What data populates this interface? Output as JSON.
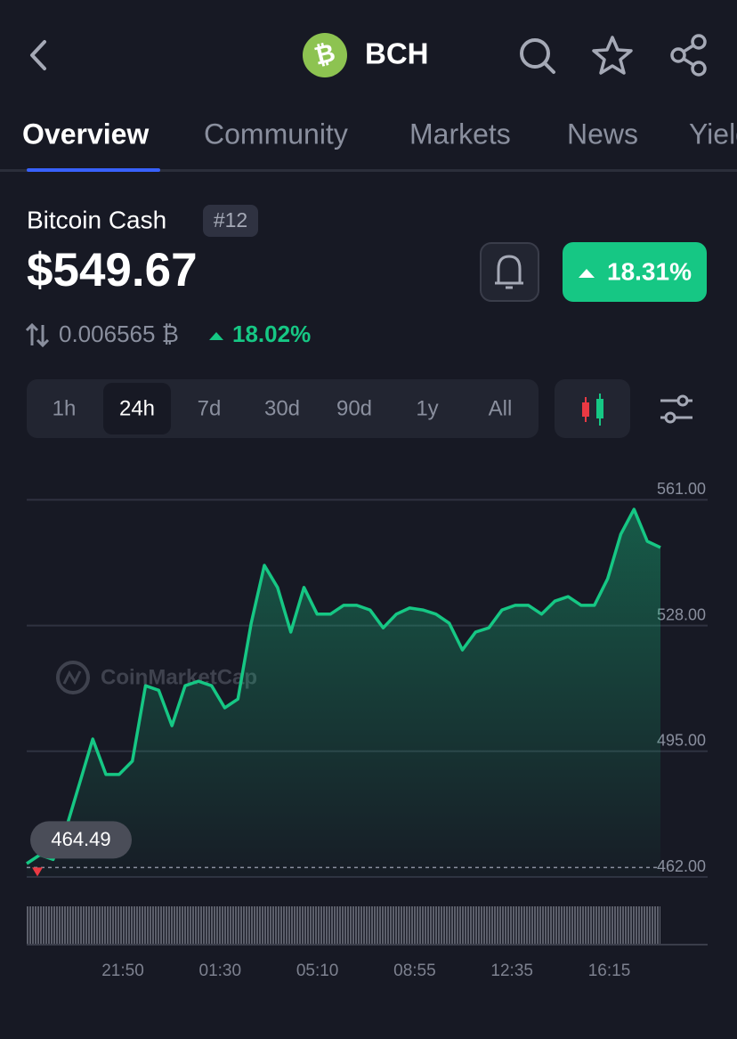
{
  "header": {
    "symbol": "BCH"
  },
  "tabs": [
    "Overview",
    "Community",
    "Markets",
    "News",
    "Yield"
  ],
  "active_tab": 0,
  "coin": {
    "name": "Bitcoin Cash",
    "rank": "#12",
    "price": "$549.67",
    "change": "18.31%",
    "btc_price": "0.006565 ₿",
    "btc_change": "18.02%"
  },
  "timeframes": [
    "1h",
    "24h",
    "7d",
    "30d",
    "90d",
    "1y",
    "All"
  ],
  "selected_timeframe": 1,
  "chart_data": {
    "type": "line",
    "watermark": "CoinMarketCap",
    "color": "#16c784",
    "series": [
      {
        "values": [
          465.5,
          467.8,
          466.6,
          474.9,
          486.5,
          498.2,
          488.9,
          488.9,
          492.4,
          512.2,
          511.0,
          501.7,
          512.2,
          513.4,
          512.2,
          506.4,
          508.7,
          528.6,
          543.8,
          538.0,
          526.3,
          538.0,
          531.0,
          531.0,
          533.3,
          533.3,
          532.1,
          527.4,
          531.0,
          532.6,
          532.1,
          531.0,
          528.6,
          521.6,
          526.3,
          527.4,
          532.1,
          533.3,
          533.3,
          531.0,
          534.4,
          535.6,
          533.3,
          533.3,
          540.3,
          552.0,
          558.5,
          550.1,
          548.5
        ]
      }
    ],
    "ylim": [
      462,
      566
    ],
    "yticks": [
      {
        "value": 561,
        "label": "561.00"
      },
      {
        "value": 528,
        "label": "528.00"
      },
      {
        "value": 495,
        "label": "495.00"
      },
      {
        "value": 462,
        "label": "462.00"
      }
    ],
    "grid": true,
    "reference_value": 464.49,
    "x_labels": [
      "21:50",
      "01:30",
      "05:10",
      "08:55",
      "12:35",
      "16:15"
    ]
  }
}
